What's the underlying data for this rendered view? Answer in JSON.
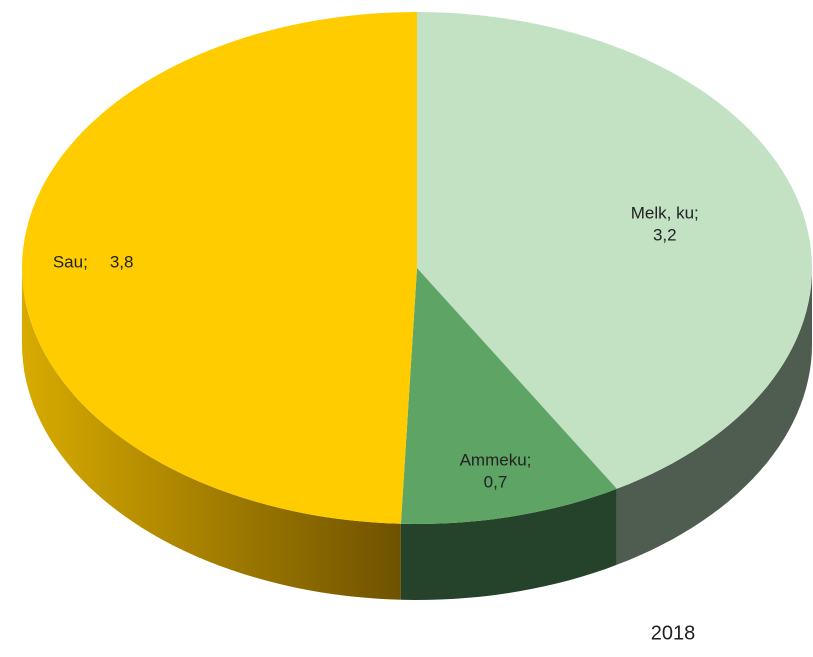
{
  "chart_data": {
    "type": "pie",
    "subtitle": "2018",
    "categories": [
      "Melk, ku",
      "Ammeku",
      "Sau"
    ],
    "values": [
      3.2,
      0.7,
      3.8
    ],
    "value_labels": [
      "3,2",
      "0,7",
      "3,8"
    ],
    "label_separator": ";",
    "colors": [
      "#c3e2c4",
      "#5ea465",
      "#ffcc00"
    ]
  }
}
